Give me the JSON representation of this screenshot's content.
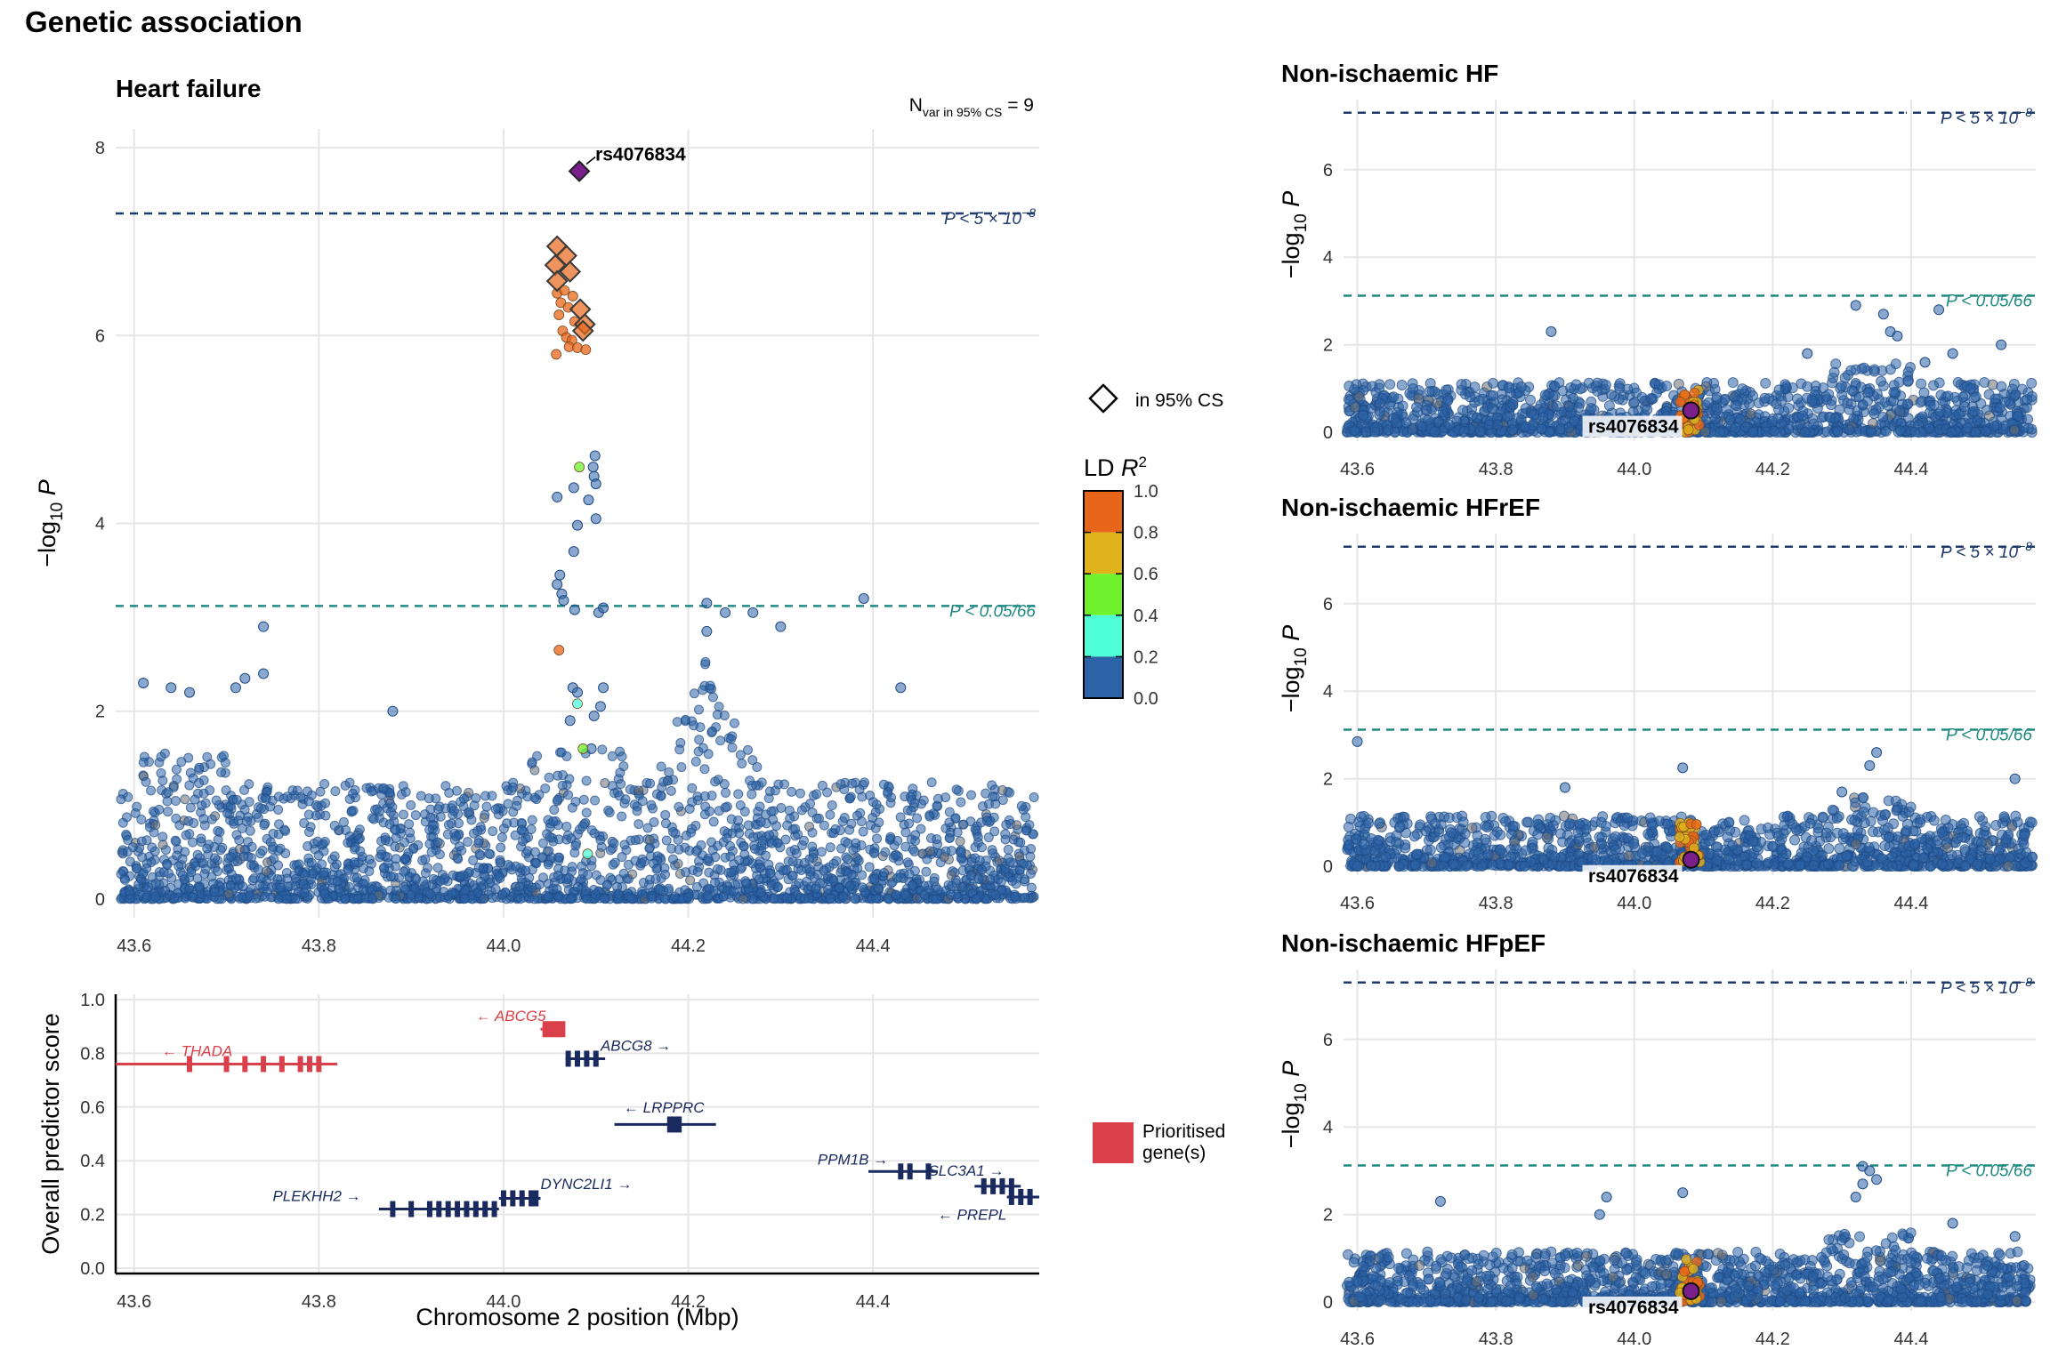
{
  "figure_title": "Genetic association",
  "colors": {
    "ld_bins": [
      "#2c62a6",
      "#4fffd8",
      "#6ff22c",
      "#e0b21b",
      "#e8661a"
    ],
    "lead": "#7b1f8c",
    "gws_line": "#1f3a6b",
    "suggestive_line": "#1f8a80",
    "prioritised_gene": "#d9404a",
    "other_gene": "#1a2a5e",
    "grey_snp": "#6e6e6e"
  },
  "chart_data": [
    {
      "id": "main",
      "type": "scatter",
      "title": "Heart failure",
      "ylabel": "−log10 P",
      "ylabel_main": "−log",
      "ylabel_sub": "10",
      "ylabel_p": "P",
      "xlim": [
        43.58,
        44.58
      ],
      "ylim": [
        -0.2,
        8.2
      ],
      "xticks": [
        "43.6",
        "43.8",
        "44.0",
        "44.2",
        "44.4"
      ],
      "xtick_values": [
        43.6,
        43.8,
        44.0,
        44.2,
        44.4
      ],
      "yticks": [
        "0",
        "2",
        "4",
        "6",
        "8"
      ],
      "ytick_values": [
        0,
        2,
        4,
        6,
        8
      ],
      "nvar_prefix": "N",
      "nvar_sub": "var in 95% CS",
      "nvar_value": " = 9",
      "gws_threshold": 7.3,
      "gws_label": "P < 5 × 10",
      "gws_exp": "−8",
      "suggestive_threshold": 3.12,
      "suggestive_label": "P < 0.05/66",
      "lead_snp": {
        "label": "rs4076834",
        "x": 44.082,
        "y": 7.75
      },
      "credible_set": [
        {
          "x": 44.058,
          "y": 6.95
        },
        {
          "x": 44.068,
          "y": 6.85
        },
        {
          "x": 44.056,
          "y": 6.75
        },
        {
          "x": 44.072,
          "y": 6.68
        },
        {
          "x": 44.058,
          "y": 6.58
        },
        {
          "x": 44.083,
          "y": 6.28
        },
        {
          "x": 44.088,
          "y": 6.12
        },
        {
          "x": 44.086,
          "y": 6.05
        }
      ],
      "high_ld_snps": [
        {
          "x": 44.058,
          "y": 6.45,
          "r2": 0.9
        },
        {
          "x": 44.066,
          "y": 6.48,
          "r2": 0.9
        },
        {
          "x": 44.075,
          "y": 6.42,
          "r2": 0.9
        },
        {
          "x": 44.062,
          "y": 6.35,
          "r2": 0.9
        },
        {
          "x": 44.07,
          "y": 6.3,
          "r2": 0.9
        },
        {
          "x": 44.06,
          "y": 6.22,
          "r2": 0.9
        },
        {
          "x": 44.077,
          "y": 6.15,
          "r2": 0.9
        },
        {
          "x": 44.064,
          "y": 6.05,
          "r2": 0.9
        },
        {
          "x": 44.068,
          "y": 5.98,
          "r2": 0.9
        },
        {
          "x": 44.074,
          "y": 5.95,
          "r2": 0.9
        },
        {
          "x": 44.071,
          "y": 5.88,
          "r2": 0.9
        },
        {
          "x": 44.08,
          "y": 5.87,
          "r2": 0.9
        },
        {
          "x": 44.089,
          "y": 5.85,
          "r2": 0.9
        },
        {
          "x": 44.057,
          "y": 5.8,
          "r2": 0.9
        },
        {
          "x": 44.06,
          "y": 2.65,
          "r2": 0.9
        },
        {
          "x": 44.082,
          "y": 4.6,
          "r2": 0.5
        },
        {
          "x": 44.086,
          "y": 1.6,
          "r2": 0.5
        },
        {
          "x": 44.08,
          "y": 2.08,
          "r2": 0.3
        },
        {
          "x": 44.091,
          "y": 0.48,
          "r2": 0.3
        }
      ],
      "peak_column_snps": [
        {
          "x": 44.099,
          "y": 4.72
        },
        {
          "x": 44.097,
          "y": 4.6
        },
        {
          "x": 44.098,
          "y": 4.5
        },
        {
          "x": 44.1,
          "y": 4.42
        },
        {
          "x": 44.076,
          "y": 4.38
        },
        {
          "x": 44.058,
          "y": 4.28
        },
        {
          "x": 44.092,
          "y": 4.25
        },
        {
          "x": 44.1,
          "y": 4.05
        },
        {
          "x": 44.08,
          "y": 3.98
        },
        {
          "x": 44.076,
          "y": 3.7
        },
        {
          "x": 44.061,
          "y": 3.45
        },
        {
          "x": 44.058,
          "y": 3.35
        },
        {
          "x": 44.063,
          "y": 3.25
        },
        {
          "x": 44.065,
          "y": 3.18
        },
        {
          "x": 44.077,
          "y": 3.08
        },
        {
          "x": 44.103,
          "y": 3.05
        },
        {
          "x": 44.108,
          "y": 3.1
        },
        {
          "x": 44.075,
          "y": 2.25
        },
        {
          "x": 44.08,
          "y": 2.2
        },
        {
          "x": 44.108,
          "y": 2.25
        },
        {
          "x": 44.105,
          "y": 2.05
        },
        {
          "x": 44.098,
          "y": 1.95
        },
        {
          "x": 44.072,
          "y": 1.9
        },
        {
          "x": 44.095,
          "y": 1.6
        }
      ],
      "notable_background": [
        {
          "x": 43.74,
          "y": 2.9
        },
        {
          "x": 43.74,
          "y": 2.4
        },
        {
          "x": 43.72,
          "y": 2.35
        },
        {
          "x": 43.71,
          "y": 2.25
        },
        {
          "x": 44.39,
          "y": 3.2
        },
        {
          "x": 44.22,
          "y": 3.15
        },
        {
          "x": 44.24,
          "y": 3.05
        },
        {
          "x": 44.27,
          "y": 3.05
        },
        {
          "x": 44.3,
          "y": 2.9
        },
        {
          "x": 44.22,
          "y": 2.85
        },
        {
          "x": 44.43,
          "y": 2.25
        },
        {
          "x": 43.88,
          "y": 2.0
        },
        {
          "x": 43.61,
          "y": 2.3
        },
        {
          "x": 43.64,
          "y": 2.25
        },
        {
          "x": 43.66,
          "y": 2.2
        }
      ],
      "background_count": 2400
    },
    {
      "id": "nihf",
      "type": "scatter",
      "title": "Non-ischaemic HF",
      "ylabel": "−log10 P",
      "ylabel_main": "−log",
      "ylabel_sub": "10",
      "ylabel_p": "P",
      "xlim": [
        43.58,
        44.58
      ],
      "ylim": [
        -0.2,
        7.6
      ],
      "xticks": [
        "43.6",
        "43.8",
        "44.0",
        "44.2",
        "44.4"
      ],
      "xtick_values": [
        43.6,
        43.8,
        44.0,
        44.2,
        44.4
      ],
      "yticks": [
        "0",
        "2",
        "4",
        "6"
      ],
      "ytick_values": [
        0,
        2,
        4,
        6
      ],
      "gws_threshold": 7.3,
      "gws_label": "P < 5 × 10",
      "gws_exp": "−8",
      "suggestive_threshold": 3.12,
      "suggestive_label": "P < 0.05/66",
      "lead_snp": {
        "label": "rs4076834",
        "x": 44.082,
        "y": 0.5
      },
      "notable_background": [
        {
          "x": 44.32,
          "y": 2.9
        },
        {
          "x": 44.36,
          "y": 2.7
        },
        {
          "x": 44.37,
          "y": 2.3
        },
        {
          "x": 44.38,
          "y": 2.2
        },
        {
          "x": 44.44,
          "y": 2.8
        },
        {
          "x": 44.25,
          "y": 1.8
        },
        {
          "x": 44.42,
          "y": 1.6
        },
        {
          "x": 43.88,
          "y": 2.3
        },
        {
          "x": 44.46,
          "y": 1.8
        },
        {
          "x": 44.53,
          "y": 2.0
        }
      ],
      "background_count": 1400,
      "cluster_max": 1.0
    },
    {
      "id": "nihfref",
      "type": "scatter",
      "title": "Non-ischaemic HFrEF",
      "ylabel": "−log10 P",
      "ylabel_main": "−log",
      "ylabel_sub": "10",
      "ylabel_p": "P",
      "xlim": [
        43.58,
        44.58
      ],
      "ylim": [
        -0.2,
        7.6
      ],
      "xticks": [
        "43.6",
        "43.8",
        "44.0",
        "44.2",
        "44.4"
      ],
      "xtick_values": [
        43.6,
        43.8,
        44.0,
        44.2,
        44.4
      ],
      "yticks": [
        "0",
        "2",
        "4",
        "6"
      ],
      "ytick_values": [
        0,
        2,
        4,
        6
      ],
      "gws_threshold": 7.3,
      "gws_label": "P < 5 × 10",
      "gws_exp": "−8",
      "suggestive_threshold": 3.12,
      "suggestive_label": "P < 0.05/66",
      "lead_snp": {
        "label": "rs4076834",
        "x": 44.082,
        "y": 0.15
      },
      "notable_background": [
        {
          "x": 43.6,
          "y": 2.85
        },
        {
          "x": 44.35,
          "y": 2.6
        },
        {
          "x": 44.34,
          "y": 2.3
        },
        {
          "x": 44.07,
          "y": 2.25
        },
        {
          "x": 44.55,
          "y": 2.0
        },
        {
          "x": 43.9,
          "y": 1.8
        },
        {
          "x": 44.3,
          "y": 1.7
        }
      ],
      "background_count": 1400,
      "cluster_max": 1.0
    },
    {
      "id": "nihfpef",
      "type": "scatter",
      "title": "Non-ischaemic HFpEF",
      "ylabel": "−log10 P",
      "ylabel_main": "−log",
      "ylabel_sub": "10",
      "ylabel_p": "P",
      "xlim": [
        43.58,
        44.58
      ],
      "ylim": [
        -0.2,
        7.6
      ],
      "xticks": [
        "43.6",
        "43.8",
        "44.0",
        "44.2",
        "44.4"
      ],
      "xtick_values": [
        43.6,
        43.8,
        44.0,
        44.2,
        44.4
      ],
      "yticks": [
        "0",
        "2",
        "4",
        "6"
      ],
      "ytick_values": [
        0,
        2,
        4,
        6
      ],
      "gws_threshold": 7.3,
      "gws_label": "P < 5 × 10",
      "gws_exp": "−8",
      "suggestive_threshold": 3.12,
      "suggestive_label": "P < 0.05/66",
      "lead_snp": {
        "label": "rs4076834",
        "x": 44.082,
        "y": 0.25
      },
      "notable_background": [
        {
          "x": 44.33,
          "y": 3.1
        },
        {
          "x": 44.34,
          "y": 3.0
        },
        {
          "x": 44.35,
          "y": 2.8
        },
        {
          "x": 44.33,
          "y": 2.7
        },
        {
          "x": 44.32,
          "y": 2.4
        },
        {
          "x": 43.72,
          "y": 2.3
        },
        {
          "x": 43.96,
          "y": 2.4
        },
        {
          "x": 44.07,
          "y": 2.5
        },
        {
          "x": 43.95,
          "y": 2.0
        },
        {
          "x": 44.46,
          "y": 1.8
        },
        {
          "x": 44.55,
          "y": 1.5
        }
      ],
      "background_count": 1500,
      "cluster_max": 1.0
    },
    {
      "id": "genes",
      "type": "gene-track",
      "ylabel": "Overall predictor score",
      "xlabel": "Chromosome 2 position (Mbp)",
      "xlim": [
        43.58,
        44.58
      ],
      "ylim": [
        -0.02,
        1.02
      ],
      "xticks": [
        "43.6",
        "43.8",
        "44.0",
        "44.2",
        "44.4"
      ],
      "xtick_values": [
        43.6,
        43.8,
        44.0,
        44.2,
        44.4
      ],
      "yticks": [
        "0.0",
        "0.2",
        "0.4",
        "0.6",
        "0.8",
        "1.0"
      ],
      "ytick_values": [
        0,
        0.2,
        0.4,
        0.6,
        0.8,
        1.0
      ],
      "genes": [
        {
          "name": "THADA",
          "label": "← THADA",
          "start": 43.58,
          "end": 43.82,
          "score": 0.76,
          "prioritised": true,
          "exons": [
            43.66,
            43.7,
            43.72,
            43.74,
            43.76,
            43.78,
            43.79,
            43.8
          ],
          "label_x": 43.63,
          "label_score": 0.81
        },
        {
          "name": "ABCG5",
          "label": "← ABCG5",
          "start": 44.04,
          "end": 44.066,
          "score": 0.89,
          "prioritised": true,
          "exons": [
            44.045,
            44.05,
            44.055,
            44.06,
            44.064
          ],
          "label_x": 43.97,
          "label_score": 0.94
        },
        {
          "name": "ABCG8",
          "label": "ABCG8 →",
          "start": 44.067,
          "end": 44.11,
          "score": 0.78,
          "prioritised": false,
          "exons": [
            44.07,
            44.08,
            44.09,
            44.1
          ],
          "label_x": 44.105,
          "label_score": 0.83
        },
        {
          "name": "LRPPRC",
          "label": "← LRPPRC",
          "start": 44.12,
          "end": 44.23,
          "score": 0.535,
          "prioritised": false,
          "exons": [
            44.18,
            44.185,
            44.19
          ],
          "label_x": 44.13,
          "label_score": 0.6
        },
        {
          "name": "PLEKHH2",
          "label": "PLEKHH2 →",
          "start": 43.865,
          "end": 43.995,
          "score": 0.22,
          "prioritised": false,
          "exons": [
            43.88,
            43.9,
            43.92,
            43.93,
            43.94,
            43.95,
            43.96,
            43.97,
            43.98,
            43.99
          ],
          "label_x": 43.75,
          "label_score": 0.27
        },
        {
          "name": "DYNC2LI1",
          "label": "DYNC2LI1 →",
          "start": 43.995,
          "end": 44.04,
          "score": 0.26,
          "prioritised": false,
          "exons": [
            44.0,
            44.01,
            44.02,
            44.03,
            44.035
          ],
          "label_x": 44.04,
          "label_score": 0.315
        },
        {
          "name": "PPM1B",
          "label": "PPM1B →",
          "start": 44.395,
          "end": 44.47,
          "score": 0.36,
          "prioritised": false,
          "exons": [
            44.43,
            44.44,
            44.46
          ],
          "label_x": 44.34,
          "label_score": 0.405
        },
        {
          "name": "SLC3A1",
          "label": "SLC3A1 →",
          "start": 44.51,
          "end": 44.56,
          "score": 0.305,
          "prioritised": false,
          "exons": [
            44.52,
            44.53,
            44.54,
            44.55
          ],
          "label_x": 44.46,
          "label_score": 0.365
        },
        {
          "name": "PREPL",
          "label": "← PREPL",
          "start": 44.545,
          "end": 44.58,
          "score": 0.265,
          "prioritised": false,
          "exons": [
            44.55,
            44.56,
            44.57
          ],
          "label_x": 44.47,
          "label_score": 0.2
        }
      ]
    }
  ],
  "legend": {
    "cs_label": "in 95% CS",
    "ld_title": "LD",
    "ld_r": "R",
    "ld_sup": "2",
    "ld_ticks": [
      "1.0",
      "0.8",
      "0.6",
      "0.4",
      "0.2",
      "0.0"
    ],
    "prioritised_line1": "Prioritised",
    "prioritised_line2": "gene(s)"
  }
}
